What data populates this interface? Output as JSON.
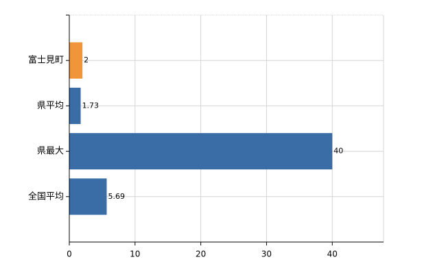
{
  "chart_data": {
    "type": "bar",
    "orientation": "horizontal",
    "categories": [
      "富士見町",
      "県平均",
      "県最大",
      "全国平均"
    ],
    "values": [
      2,
      1.73,
      40,
      5.69
    ],
    "colors": [
      "#f0953a",
      "#3a6ca6",
      "#3a6ca6",
      "#3a6ca6"
    ],
    "xlim": [
      0,
      47.8
    ],
    "xticks": [
      0,
      10,
      20,
      30,
      40
    ],
    "grid": true
  }
}
